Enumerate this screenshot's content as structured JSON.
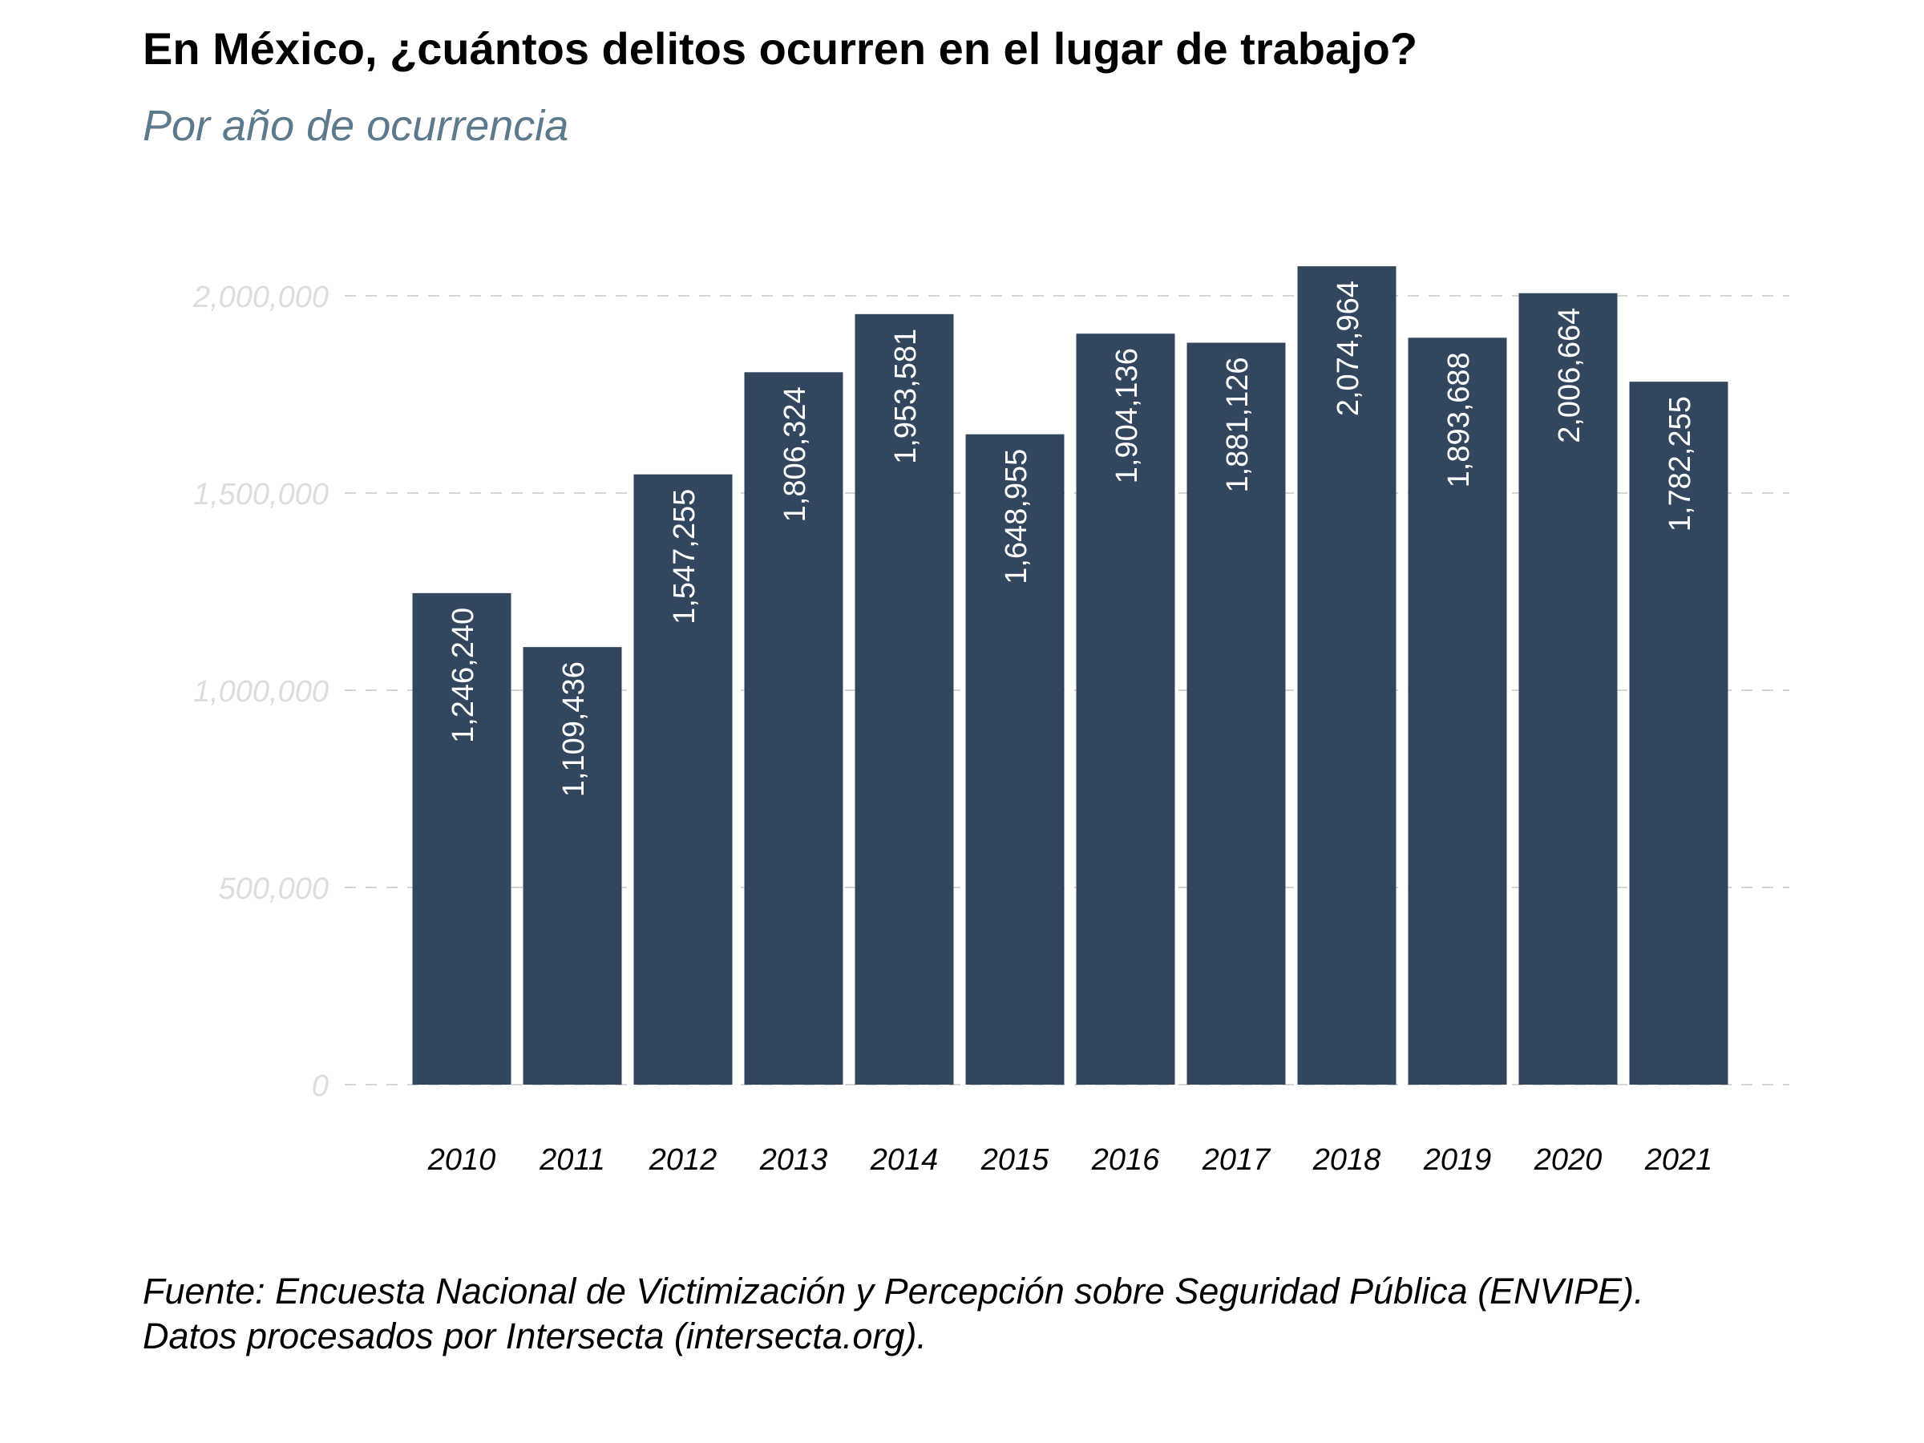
{
  "title": "En México, ¿cuántos delitos ocurren en el lugar de trabajo?",
  "subtitle": "Por año de ocurrencia",
  "caption_lines": [
    "Fuente: Encuesta Nacional de Victimización y Percepción sobre Seguridad Pública (ENVIPE).",
    "Datos procesados por Intersecta (intersecta.org)."
  ],
  "colors": {
    "bar": "#32475d",
    "bar_label": "#ffffff",
    "grid": "#d5d5d5",
    "y_tick": "#dddddd",
    "x_tick": "#000000",
    "subtitle": "#5d7a8c"
  },
  "chart_data": {
    "type": "bar",
    "title": "En México, ¿cuántos delitos ocurren en el lugar de trabajo?",
    "subtitle": "Por año de ocurrencia",
    "xlabel": "",
    "ylabel": "",
    "categories": [
      "2010",
      "2011",
      "2012",
      "2013",
      "2014",
      "2015",
      "2016",
      "2017",
      "2018",
      "2019",
      "2020",
      "2021"
    ],
    "values": [
      1246240,
      1109436,
      1547255,
      1806324,
      1953581,
      1648955,
      1904136,
      1881126,
      2074964,
      1893688,
      2006664,
      1782255
    ],
    "data_labels": [
      "1,246,240",
      "1,109,436",
      "1,547,255",
      "1,806,324",
      "1,953,581",
      "1,648,955",
      "1,904,136",
      "1,881,126",
      "2,074,964",
      "1,893,688",
      "2,006,664",
      "1,782,255"
    ],
    "yticks": [
      0,
      500000,
      1000000,
      1500000,
      2000000
    ],
    "ytick_labels": [
      "0",
      "500,000",
      "1,000,000",
      "1,500,000",
      "2,000,000"
    ],
    "ylim": [
      0,
      2074964
    ],
    "grid": true,
    "grid_style": "dashed horizontal",
    "legend": "none"
  }
}
